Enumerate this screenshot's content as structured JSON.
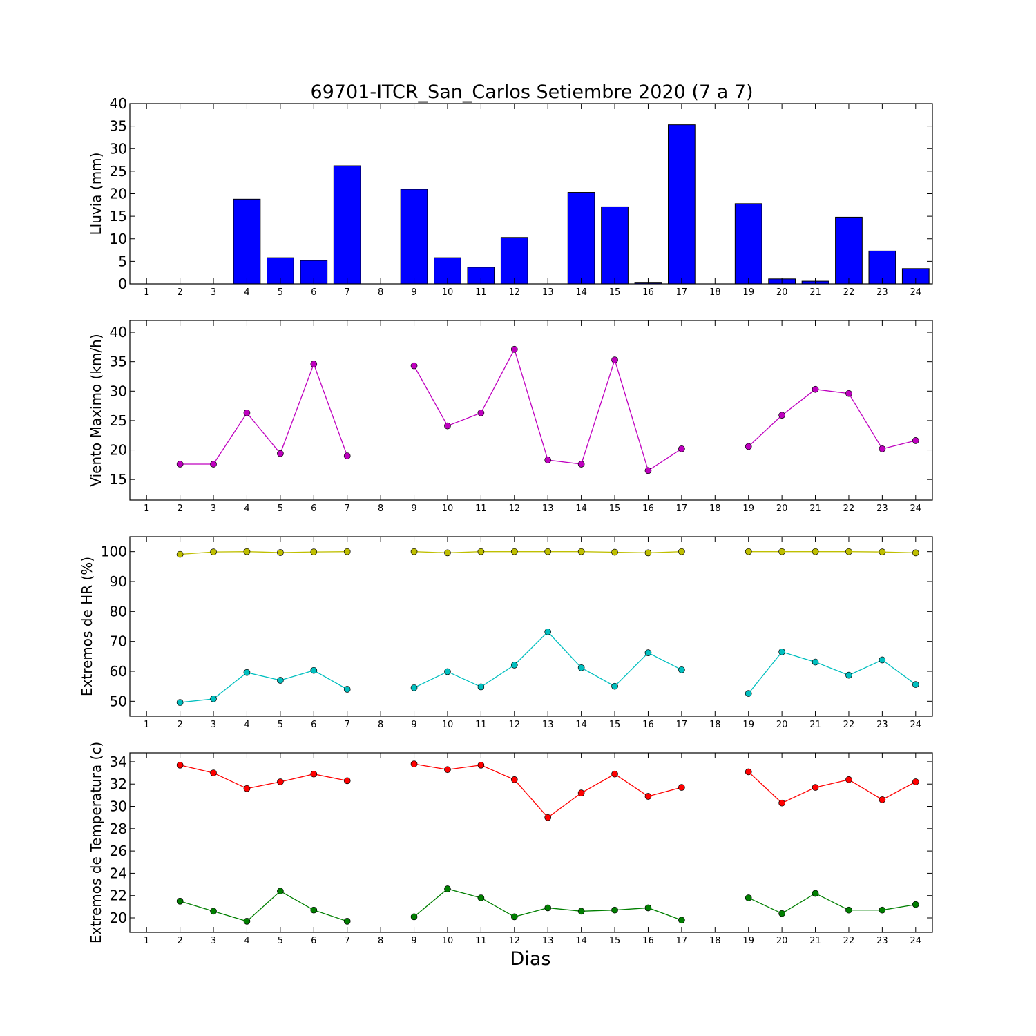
{
  "title": "69701-ITCR_San_Carlos Setiembre 2020  (7 a 7)",
  "xlabel": "Dias",
  "chart_data": [
    {
      "type": "bar",
      "ylabel": "Lluvia (mm)",
      "categories": [
        1,
        2,
        3,
        4,
        5,
        6,
        7,
        8,
        9,
        10,
        11,
        12,
        13,
        14,
        15,
        16,
        17,
        18,
        19,
        20,
        21,
        22,
        23,
        24
      ],
      "values": [
        0,
        0,
        0,
        18.8,
        5.8,
        5.2,
        26.2,
        0,
        21.0,
        5.8,
        3.7,
        10.3,
        0,
        20.3,
        17.1,
        0.2,
        35.3,
        0,
        17.8,
        1.1,
        0.6,
        14.8,
        7.3,
        3.4
      ],
      "ylim": [
        0,
        40
      ],
      "yticks": [
        0,
        5,
        10,
        15,
        20,
        25,
        30,
        35,
        40
      ],
      "colors": {
        "bar": "#0000ff"
      }
    },
    {
      "type": "line",
      "ylabel": "Viento Maximo (km/h)",
      "x": [
        1,
        2,
        3,
        4,
        5,
        6,
        7,
        8,
        9,
        10,
        11,
        12,
        13,
        14,
        15,
        16,
        17,
        18,
        19,
        20,
        21,
        22,
        23,
        24
      ],
      "series": [
        {
          "color": "#bf00bf",
          "values": [
            null,
            17.6,
            17.6,
            26.3,
            19.4,
            34.6,
            19.0,
            null,
            34.3,
            24.1,
            26.3,
            37.1,
            18.3,
            17.6,
            35.3,
            16.5,
            20.2,
            null,
            20.6,
            25.9,
            30.3,
            29.6,
            20.2,
            21.6
          ]
        }
      ],
      "ylim": [
        11.5,
        42
      ],
      "yticks": [
        15,
        20,
        25,
        30,
        35,
        40
      ]
    },
    {
      "type": "line",
      "ylabel": "Extremos de HR (%)",
      "x": [
        1,
        2,
        3,
        4,
        5,
        6,
        7,
        8,
        9,
        10,
        11,
        12,
        13,
        14,
        15,
        16,
        17,
        18,
        19,
        20,
        21,
        22,
        23,
        24
      ],
      "series": [
        {
          "color": "#bfbf00",
          "values": [
            null,
            99.1,
            99.9,
            100.0,
            99.7,
            99.9,
            100.0,
            null,
            100.0,
            99.6,
            100.0,
            100.0,
            100.0,
            100.0,
            99.8,
            99.6,
            100.0,
            null,
            100.0,
            100.0,
            100.0,
            100.0,
            99.9,
            99.6
          ]
        },
        {
          "color": "#00bfbf",
          "values": [
            null,
            49.6,
            50.8,
            59.6,
            57.0,
            60.3,
            54.0,
            null,
            54.5,
            59.9,
            54.8,
            62.1,
            73.2,
            61.2,
            55.0,
            66.2,
            60.5,
            null,
            52.6,
            66.5,
            63.1,
            58.7,
            63.8,
            55.6
          ]
        }
      ],
      "ylim": [
        45,
        105
      ],
      "yticks": [
        50,
        60,
        70,
        80,
        90,
        100
      ]
    },
    {
      "type": "line",
      "ylabel": "Extremos de Temperatura (c)",
      "x": [
        1,
        2,
        3,
        4,
        5,
        6,
        7,
        8,
        9,
        10,
        11,
        12,
        13,
        14,
        15,
        16,
        17,
        18,
        19,
        20,
        21,
        22,
        23,
        24
      ],
      "series": [
        {
          "color": "#ff0000",
          "values": [
            null,
            33.7,
            33.0,
            31.6,
            32.2,
            32.9,
            32.3,
            null,
            33.8,
            33.3,
            33.7,
            32.4,
            29.0,
            31.2,
            32.9,
            30.9,
            31.7,
            null,
            33.1,
            30.3,
            31.7,
            32.4,
            30.6,
            32.2
          ]
        },
        {
          "color": "#007f00",
          "values": [
            null,
            21.5,
            20.6,
            19.7,
            22.4,
            20.7,
            19.7,
            null,
            20.1,
            22.6,
            21.8,
            20.1,
            20.9,
            20.6,
            20.7,
            20.9,
            19.8,
            null,
            21.8,
            20.4,
            22.2,
            20.7,
            20.7,
            21.2
          ]
        }
      ],
      "ylim": [
        18.7,
        34.8
      ],
      "yticks": [
        20,
        22,
        24,
        26,
        28,
        30,
        32,
        34
      ]
    }
  ]
}
